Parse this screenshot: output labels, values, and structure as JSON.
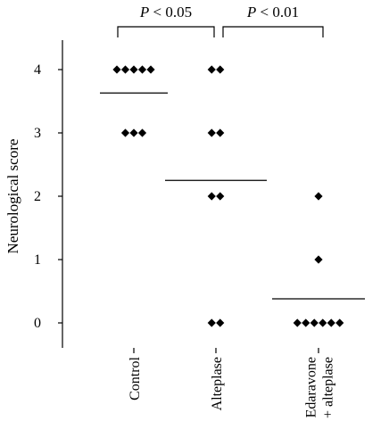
{
  "chart_data": {
    "type": "scatter",
    "title": "",
    "xlabel": "",
    "ylabel": "Neurological score",
    "ylim": [
      0,
      4
    ],
    "yticks": [
      0,
      1,
      2,
      3,
      4
    ],
    "grid": false,
    "categories": [
      "Control",
      "Alteplase",
      "Edaravone + alteplase"
    ],
    "category_label_lines": [
      [
        "Control"
      ],
      [
        "Alteplase"
      ],
      [
        "Edaravone",
        "+ alteplase"
      ]
    ],
    "groups": [
      {
        "category": "Control",
        "values": [
          4,
          4,
          4,
          4,
          4,
          3,
          3,
          3
        ],
        "mean": 3.63
      },
      {
        "category": "Alteplase",
        "values": [
          4,
          4,
          3,
          3,
          2,
          2,
          0,
          0
        ],
        "mean": 2.25
      },
      {
        "category": "Edaravone + alteplase",
        "values": [
          2,
          1,
          0,
          0,
          0,
          0,
          0,
          0
        ],
        "mean": 0.38
      }
    ],
    "comparisons": [
      {
        "from": "Control",
        "to": "Alteplase",
        "p_italic": "P",
        "p_rest": " < 0.05"
      },
      {
        "from": "Alteplase",
        "to": "Edaravone + alteplase",
        "p_italic": "P",
        "p_rest": " < 0.01"
      }
    ],
    "marker": "diamond",
    "color": "#000000"
  }
}
